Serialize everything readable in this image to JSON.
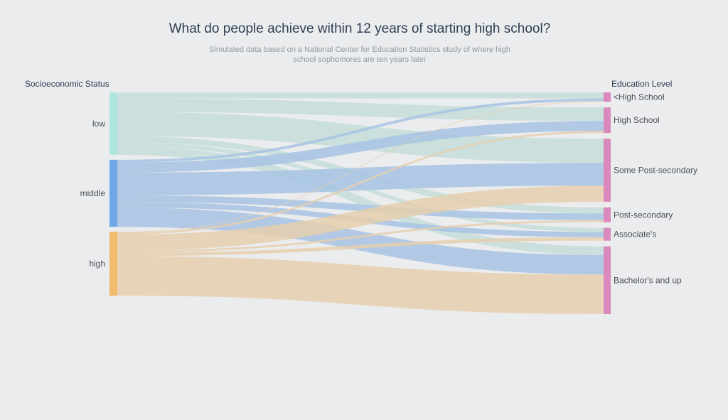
{
  "header": {
    "title": "What do people achieve within 12 years of starting high school?",
    "subtitle": "Simulated data based on a National Center for Education Statistics study of where high school sophomores are ten years later"
  },
  "left_axis_title": "Socioeconomic Status",
  "right_axis_title": "Education Level",
  "colors": {
    "low": "#aee6de",
    "middle": "#6ea8e8",
    "high": "#f2bb6c",
    "target": "#d989bb",
    "low_link": "#c5ded9",
    "middle_link": "#a7c3e3",
    "high_link": "#e6cfae"
  },
  "chart_data": {
    "type": "sankey",
    "sources": [
      "low",
      "middle",
      "high"
    ],
    "targets": [
      "<High School",
      "High School",
      "Some Post-secondary",
      "Post-secondary",
      "Associate's",
      "Bachelor's and up"
    ],
    "flows": [
      {
        "source": "low",
        "target": "<High School",
        "value": 9
      },
      {
        "source": "low",
        "target": "High School",
        "value": 20
      },
      {
        "source": "low",
        "target": "Some Post-secondary",
        "value": 36
      },
      {
        "source": "low",
        "target": "Post-secondary",
        "value": 9
      },
      {
        "source": "low",
        "target": "Associate's",
        "value": 6
      },
      {
        "source": "low",
        "target": "Bachelor's and up",
        "value": 13
      },
      {
        "source": "middle",
        "target": "<High School",
        "value": 4
      },
      {
        "source": "middle",
        "target": "High School",
        "value": 15
      },
      {
        "source": "middle",
        "target": "Some Post-secondary",
        "value": 34
      },
      {
        "source": "middle",
        "target": "Post-secondary",
        "value": 10
      },
      {
        "source": "middle",
        "target": "Associate's",
        "value": 8
      },
      {
        "source": "middle",
        "target": "Bachelor's and up",
        "value": 29
      },
      {
        "source": "high",
        "target": "<High School",
        "value": 1
      },
      {
        "source": "high",
        "target": "High School",
        "value": 3
      },
      {
        "source": "high",
        "target": "Some Post-secondary",
        "value": 24
      },
      {
        "source": "high",
        "target": "Post-secondary",
        "value": 3
      },
      {
        "source": "high",
        "target": "Associate's",
        "value": 5
      },
      {
        "source": "high",
        "target": "Bachelor's and up",
        "value": 59
      }
    ]
  }
}
